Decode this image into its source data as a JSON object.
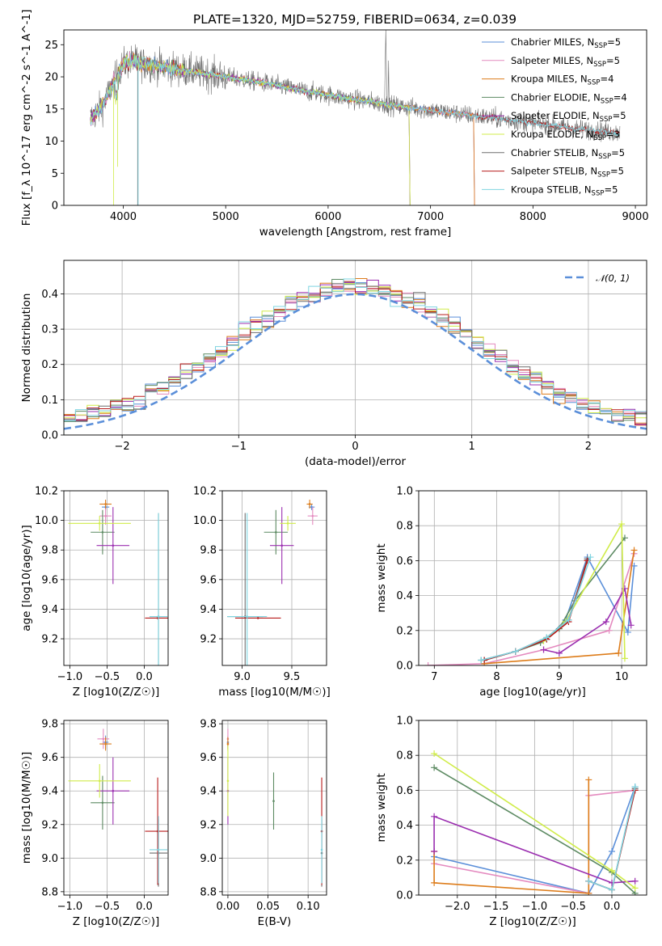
{
  "figure": {
    "title": "PLATE=1320, MJD=52759, FIBERID=0634, z=0.039",
    "colors": {
      "Chabrier MILES": "#5b8fd9",
      "Salpeter MILES": "#e48abf",
      "Kroupa MILES": "#dd7c1a",
      "Chabrier ELODIE": "#5c8a62",
      "Salpeter ELODIE": "#9b2fb0",
      "Kroupa ELODIE": "#d0ec4a",
      "Chabrier STELIB": "#6e6e6e",
      "Salpeter STELIB": "#b81c1c",
      "Kroupa STELIB": "#7fd4e0",
      "normal": "#5b8fd9"
    }
  },
  "chart_data": [
    {
      "id": "spectrum",
      "type": "line",
      "title": "PLATE=1320, MJD=52759, FIBERID=0634, z=0.039",
      "xlabel": "wavelength [Angstrom, rest frame]",
      "ylabel": "Flux [f_λ 10^-17 erg cm^-2 s^-1 A^-1]",
      "xlim": [
        3420,
        9110
      ],
      "ylim": [
        0,
        27.3
      ],
      "xticks": [
        4000,
        5000,
        6000,
        7000,
        8000,
        9000
      ],
      "yticks": [
        0,
        5,
        10,
        15,
        20,
        25
      ],
      "grid": false,
      "legend_position": "top-right",
      "legend": [
        {
          "name": "Chabrier MILES",
          "nssp": "5"
        },
        {
          "name": "Salpeter MILES",
          "nssp": "5"
        },
        {
          "name": "Kroupa MILES",
          "nssp": "4"
        },
        {
          "name": "Chabrier ELODIE",
          "nssp": "4"
        },
        {
          "name": "Salpeter ELODIE",
          "nssp": "5"
        },
        {
          "name": "Kroupa ELODIE",
          "nssp": "3"
        },
        {
          "name": "Chabrier STELIB",
          "nssp": "5"
        },
        {
          "name": "Salpeter STELIB",
          "nssp": "5"
        },
        {
          "name": "Kroupa STELIB",
          "nssp": "5"
        }
      ],
      "continuum": {
        "x": [
          3680,
          3800,
          3900,
          4000,
          4100,
          4200,
          4400,
          4600,
          4800,
          5000,
          5200,
          5400,
          5600,
          5800,
          6000,
          6200,
          6400,
          6600,
          6800,
          7000,
          7200,
          7400,
          7600,
          7800,
          8000,
          8200,
          8400,
          8600,
          8850
        ],
        "y": [
          13.5,
          15.5,
          19.0,
          22.0,
          22.5,
          22.0,
          21.5,
          21.0,
          20.5,
          20.0,
          19.5,
          19.0,
          18.3,
          17.7,
          17.2,
          16.6,
          16.2,
          15.6,
          15.2,
          14.8,
          14.4,
          14.0,
          13.6,
          13.2,
          12.8,
          12.4,
          12.0,
          11.6,
          11.3
        ]
      },
      "data_features": {
        "halpha": {
          "x": 6563,
          "y": 27.3
        },
        "extra_peak": {
          "x": 6590,
          "y": 22.5
        }
      },
      "model_cutoffs": [
        {
          "series": "Kroupa MILES",
          "x": 7420
        },
        {
          "series": "Salpeter MILES",
          "x": 7420
        },
        {
          "series": "Chabrier MILES",
          "x": 7420
        },
        {
          "series": "Kroupa ELODIE",
          "x": 6790
        },
        {
          "series": "Chabrier ELODIE",
          "x": 6790
        },
        {
          "series": "Salpeter ELODIE",
          "x": 6790
        }
      ],
      "absorption_dips": [
        {
          "series": "Kroupa ELODIE",
          "x": 3905,
          "y": 0
        },
        {
          "series": "Kroupa ELODIE",
          "x": 3945,
          "y": 6
        },
        {
          "series": "Chabrier STELIB",
          "x": 4140,
          "y": 0
        },
        {
          "series": "Kroupa STELIB",
          "x": 4145,
          "y": 0
        }
      ]
    },
    {
      "id": "residuals",
      "type": "bar",
      "xlabel": "(data-model)/error",
      "ylabel": "Normed distribution",
      "xlim": [
        -2.5,
        2.5
      ],
      "ylim": [
        0,
        0.495
      ],
      "xticks": [
        -2,
        -1,
        0,
        1,
        2
      ],
      "yticks": [
        0.0,
        0.1,
        0.2,
        0.3,
        0.4
      ],
      "grid": true,
      "legend_position": "top-right",
      "legend": [
        {
          "label": "𝒩(0, 1)"
        }
      ],
      "bin_width": 0.1,
      "bin_start": -2.5
    },
    {
      "id": "age_vs_z",
      "type": "scatter",
      "xlabel": "Z [log10(Z/Z☉)]",
      "ylabel": "age [log10(age/yr)]",
      "xlim": [
        -1.08,
        0.32
      ],
      "ylim": [
        9.02,
        10.2
      ],
      "xticks": [
        -1.0,
        -0.5,
        0.0
      ],
      "yticks": [
        9.2,
        9.4,
        9.6,
        9.8,
        10.0,
        10.2
      ],
      "grid": true,
      "points": [
        {
          "series": "Chabrier MILES",
          "x": -0.52,
          "y": 10.09,
          "xerr": 0.05,
          "yerr": 0.02
        },
        {
          "series": "Salpeter MILES",
          "x": -0.52,
          "y": 10.03,
          "xerr": 0.08,
          "yerr": 0.06
        },
        {
          "series": "Kroupa MILES",
          "x": -0.52,
          "y": 10.11,
          "xerr": 0.08,
          "yerr": 0.03
        },
        {
          "series": "Chabrier ELODIE",
          "x": -0.56,
          "y": 9.92,
          "xerr": 0.16,
          "yerr": 0.15
        },
        {
          "series": "Salpeter ELODIE",
          "x": -0.42,
          "y": 9.83,
          "xerr": 0.22,
          "yerr": 0.26
        },
        {
          "series": "Kroupa ELODIE",
          "x": -0.6,
          "y": 9.98,
          "xerr": 0.42,
          "yerr": 0.05
        },
        {
          "series": "Chabrier STELIB",
          "x": 0.19,
          "y": 9.35,
          "xerr": 0.12,
          "yerr": 0.7
        },
        {
          "series": "Salpeter STELIB",
          "x": 0.18,
          "y": 9.34,
          "xerr": 0.17,
          "yerr": 0.0
        },
        {
          "series": "Kroupa STELIB",
          "x": 0.19,
          "y": 9.35,
          "xerr": 0.12,
          "yerr": 0.7
        }
      ]
    },
    {
      "id": "age_vs_mass",
      "type": "scatter",
      "xlabel": "mass [log10(M/M☉)]",
      "ylabel": "",
      "xlim": [
        8.8,
        9.85
      ],
      "ylim": [
        9.02,
        10.2
      ],
      "xticks": [
        9.0,
        9.5
      ],
      "yticks": [
        9.2,
        9.4,
        9.6,
        9.8,
        10.0,
        10.2
      ],
      "grid": true,
      "points": [
        {
          "series": "Chabrier MILES",
          "x": 9.7,
          "y": 10.09,
          "xerr": 0.03,
          "yerr": 0.02
        },
        {
          "series": "Salpeter MILES",
          "x": 9.71,
          "y": 10.03,
          "xerr": 0.05,
          "yerr": 0.06
        },
        {
          "series": "Kroupa MILES",
          "x": 9.68,
          "y": 10.11,
          "xerr": 0.03,
          "yerr": 0.03
        },
        {
          "series": "Chabrier ELODIE",
          "x": 9.34,
          "y": 9.92,
          "xerr": 0.12,
          "yerr": 0.15
        },
        {
          "series": "Salpeter ELODIE",
          "x": 9.4,
          "y": 9.83,
          "xerr": 0.12,
          "yerr": 0.26
        },
        {
          "series": "Kroupa ELODIE",
          "x": 9.46,
          "y": 9.98,
          "xerr": 0.08,
          "yerr": 0.05
        },
        {
          "series": "Chabrier STELIB",
          "x": 9.03,
          "y": 9.35,
          "xerr": 0.18,
          "yerr": 0.7
        },
        {
          "series": "Salpeter STELIB",
          "x": 9.16,
          "y": 9.34,
          "xerr": 0.23,
          "yerr": 0.0
        },
        {
          "series": "Kroupa STELIB",
          "x": 9.05,
          "y": 9.35,
          "xerr": 0.2,
          "yerr": 0.7
        }
      ]
    },
    {
      "id": "mass_weight_vs_age",
      "type": "line",
      "xlabel": "age [log10(age/yr)]",
      "ylabel": "mass weight",
      "xlim": [
        6.75,
        10.4
      ],
      "ylim": [
        0,
        1.0
      ],
      "xticks": [
        7,
        8,
        9,
        10
      ],
      "yticks": [
        0.0,
        0.2,
        0.4,
        0.6,
        0.8,
        1.0
      ],
      "grid": true,
      "series": [
        {
          "name": "Chabrier MILES",
          "x": [
            7.8,
            8.3,
            8.8,
            9.1,
            9.45,
            10.1,
            10.2
          ],
          "y": [
            0.03,
            0.08,
            0.15,
            0.26,
            0.62,
            0.19,
            0.57
          ]
        },
        {
          "name": "Salpeter MILES",
          "x": [
            6.9,
            7.8,
            8.75,
            9.8,
            10.2
          ],
          "y": [
            0.0,
            0.01,
            0.09,
            0.2,
            0.64
          ]
        },
        {
          "name": "Kroupa MILES",
          "x": [
            7.8,
            9.95,
            10.2
          ],
          "y": [
            0.01,
            0.07,
            0.66
          ]
        },
        {
          "name": "Chabrier ELODIE",
          "x": [
            7.8,
            8.3,
            8.7,
            9.0,
            9.25,
            10.05
          ],
          "y": [
            0.03,
            0.08,
            0.13,
            0.21,
            0.37,
            0.73
          ]
        },
        {
          "name": "Salpeter ELODIE",
          "x": [
            8.75,
            9.0,
            9.75,
            10.05,
            10.15
          ],
          "y": [
            0.09,
            0.07,
            0.25,
            0.44,
            0.23
          ]
        },
        {
          "name": "Kroupa ELODIE",
          "x": [
            8.75,
            9.1,
            10.0,
            10.05
          ],
          "y": [
            0.14,
            0.25,
            0.81,
            0.04
          ]
        },
        {
          "name": "Chabrier STELIB",
          "x": [
            7.75,
            8.3,
            8.8,
            9.15,
            9.45
          ],
          "y": [
            0.03,
            0.08,
            0.16,
            0.26,
            0.61
          ]
        },
        {
          "name": "Salpeter STELIB",
          "x": [
            7.8,
            8.3,
            8.8,
            9.15,
            9.45
          ],
          "y": [
            0.03,
            0.08,
            0.15,
            0.25,
            0.6
          ]
        },
        {
          "name": "Kroupa STELIB",
          "x": [
            7.75,
            8.3,
            8.8,
            9.15,
            9.5
          ],
          "y": [
            0.03,
            0.08,
            0.16,
            0.26,
            0.62
          ]
        }
      ]
    },
    {
      "id": "mass_vs_z",
      "type": "scatter",
      "xlabel": "Z [log10(Z/Z☉)]",
      "ylabel": "mass [log10(M/M☉)]",
      "xlim": [
        -1.08,
        0.32
      ],
      "ylim": [
        8.78,
        9.82
      ],
      "xticks": [
        -1.0,
        -0.5,
        0.0
      ],
      "yticks": [
        8.8,
        9.0,
        9.2,
        9.4,
        9.6,
        9.8
      ],
      "grid": true,
      "points": [
        {
          "series": "Chabrier MILES",
          "x": -0.52,
          "y": 9.69,
          "xerr": 0.04,
          "yerr": 0.04
        },
        {
          "series": "Salpeter MILES",
          "x": -0.55,
          "y": 9.71,
          "xerr": 0.08,
          "yerr": 0.06
        },
        {
          "series": "Kroupa MILES",
          "x": -0.52,
          "y": 9.68,
          "xerr": 0.08,
          "yerr": 0.04
        },
        {
          "series": "Chabrier ELODIE",
          "x": -0.56,
          "y": 9.33,
          "xerr": 0.16,
          "yerr": 0.16
        },
        {
          "series": "Salpeter ELODIE",
          "x": -0.42,
          "y": 9.4,
          "xerr": 0.22,
          "yerr": 0.2
        },
        {
          "series": "Kroupa ELODIE",
          "x": -0.6,
          "y": 9.46,
          "xerr": 0.42,
          "yerr": 0.1
        },
        {
          "series": "Chabrier STELIB",
          "x": 0.19,
          "y": 9.03,
          "xerr": 0.12,
          "yerr": 0.2
        },
        {
          "series": "Salpeter STELIB",
          "x": 0.18,
          "y": 9.16,
          "xerr": 0.17,
          "yerr": 0.32
        },
        {
          "series": "Kroupa STELIB",
          "x": 0.19,
          "y": 9.05,
          "xerr": 0.12,
          "yerr": 0.2
        }
      ]
    },
    {
      "id": "mass_vs_ebv",
      "type": "scatter",
      "xlabel": "E(B-V)",
      "ylabel": "",
      "xlim": [
        -0.007,
        0.123
      ],
      "ylim": [
        8.78,
        9.82
      ],
      "xticks": [
        0.0,
        0.05,
        0.1
      ],
      "yticks": [
        8.8,
        9.0,
        9.2,
        9.4,
        9.6,
        9.8
      ],
      "grid": true,
      "points": [
        {
          "series": "Chabrier MILES",
          "x": 0.0,
          "y": 9.69,
          "xerr": 0.0,
          "yerr": 0.04
        },
        {
          "series": "Salpeter MILES",
          "x": 0.0,
          "y": 9.71,
          "xerr": 0.0,
          "yerr": 0.06
        },
        {
          "series": "Kroupa MILES",
          "x": 0.0,
          "y": 9.68,
          "xerr": 0.0,
          "yerr": 0.04
        },
        {
          "series": "Chabrier ELODIE",
          "x": 0.057,
          "y": 9.34,
          "xerr": 0.0,
          "yerr": 0.17
        },
        {
          "series": "Salpeter ELODIE",
          "x": 0.0,
          "y": 9.4,
          "xerr": 0.0,
          "yerr": 0.2
        },
        {
          "series": "Kroupa ELODIE",
          "x": 0.0,
          "y": 9.46,
          "xerr": 0.0,
          "yerr": 0.21
        },
        {
          "series": "Chabrier STELIB",
          "x": 0.117,
          "y": 9.03,
          "xerr": 0.0,
          "yerr": 0.2
        },
        {
          "series": "Salpeter STELIB",
          "x": 0.117,
          "y": 9.16,
          "xerr": 0.0,
          "yerr": 0.32
        },
        {
          "series": "Kroupa STELIB",
          "x": 0.117,
          "y": 9.05,
          "xerr": 0.0,
          "yerr": 0.2
        }
      ]
    },
    {
      "id": "mass_weight_vs_z",
      "type": "line",
      "xlabel": "Z [log10(Z/Z☉)]",
      "ylabel": "mass weight",
      "xlim": [
        -2.5,
        0.45
      ],
      "ylim": [
        0,
        1.0
      ],
      "xticks": [
        -2.0,
        -1.5,
        -1.0,
        -0.5,
        0.0
      ],
      "yticks": [
        0.0,
        0.2,
        0.4,
        0.6,
        0.8,
        1.0
      ],
      "grid": true,
      "series": [
        {
          "name": "Chabrier MILES",
          "x": [
            -2.3,
            -0.3,
            0.0,
            0.3
          ],
          "y": [
            0.22,
            0.01,
            0.25,
            0.62
          ]
        },
        {
          "name": "Salpeter MILES",
          "x": [
            -2.3,
            -2.3,
            -0.3,
            -0.3,
            0.3
          ],
          "y": [
            0.25,
            0.18,
            0.01,
            0.57,
            0.6
          ]
        },
        {
          "name": "Kroupa MILES",
          "x": [
            -2.3,
            -2.3,
            -0.3,
            -0.3
          ],
          "y": [
            0.25,
            0.07,
            0.01,
            0.66
          ]
        },
        {
          "name": "Chabrier ELODIE",
          "x": [
            -2.3,
            0.0,
            0.3
          ],
          "y": [
            0.73,
            0.13,
            0.01
          ]
        },
        {
          "name": "Salpeter ELODIE",
          "x": [
            -2.3,
            -2.3,
            0.0,
            0.3
          ],
          "y": [
            0.25,
            0.45,
            0.07,
            0.08
          ]
        },
        {
          "name": "Kroupa ELODIE",
          "x": [
            -2.3,
            0.0,
            0.3
          ],
          "y": [
            0.81,
            0.14,
            0.04
          ]
        },
        {
          "name": "Chabrier STELIB",
          "x": [
            -0.3,
            0.0,
            0.3
          ],
          "y": [
            0.08,
            0.03,
            0.61
          ]
        },
        {
          "name": "Salpeter STELIB",
          "x": [
            -0.3,
            0.0,
            0.3
          ],
          "y": [
            0.08,
            0.03,
            0.6
          ]
        },
        {
          "name": "Kroupa STELIB",
          "x": [
            -0.3,
            0.0,
            0.3
          ],
          "y": [
            0.08,
            0.03,
            0.62
          ]
        }
      ]
    }
  ]
}
